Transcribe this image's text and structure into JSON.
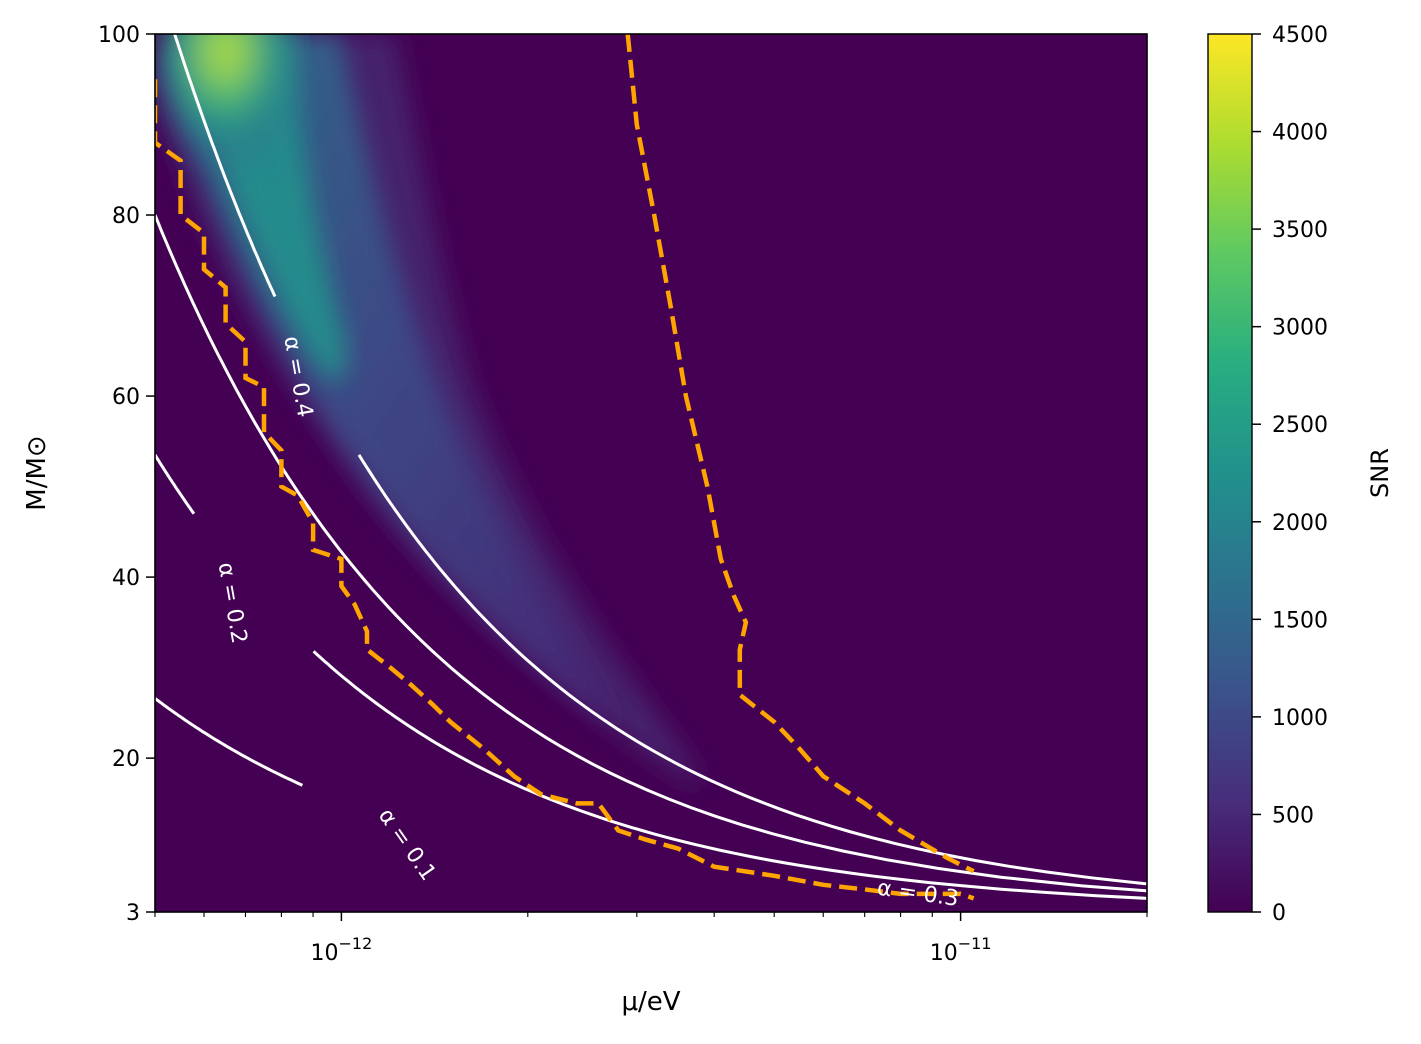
{
  "chart_data": {
    "type": "heatmap",
    "title": "",
    "xlabel": "μ/eV",
    "ylabel": "M/M⊙",
    "xscale": "log",
    "xlim": [
      5e-13,
      2e-11
    ],
    "ylim": [
      3,
      100
    ],
    "xticks": [
      {
        "value": 1e-12,
        "base": "10",
        "exp": "−12"
      },
      {
        "value": 1e-11,
        "base": "10",
        "exp": "−11"
      }
    ],
    "yticks": [
      3,
      20,
      40,
      60,
      80,
      100
    ],
    "colorbar": {
      "label": "SNR",
      "min": 0,
      "max": 4500,
      "ticks": [
        0,
        500,
        1000,
        1500,
        2000,
        2500,
        3000,
        3500,
        4000,
        4500
      ],
      "colormap": "viridis",
      "colors": [
        "#440154",
        "#472d7b",
        "#3b528b",
        "#2c728e",
        "#21918c",
        "#28ae80",
        "#5ec962",
        "#addc30",
        "#fde725"
      ]
    },
    "snr_peak": {
      "mu": 6.5e-13,
      "M": 98,
      "snr": 4500
    },
    "alpha_contours": [
      {
        "label": "α = 0.1",
        "alpha": 0.1
      },
      {
        "label": "α = 0.2",
        "alpha": 0.2
      },
      {
        "label": "α = 0.3",
        "alpha": 0.3
      },
      {
        "label": "α = 0.4",
        "alpha": 0.4
      }
    ],
    "threshold_contours": {
      "color": "#ffa500",
      "style": "dashed",
      "lower": [
        [
          5e-13,
          95
        ],
        [
          5e-13,
          88
        ],
        [
          5.5e-13,
          86
        ],
        [
          5.5e-13,
          80
        ],
        [
          6e-13,
          78
        ],
        [
          6e-13,
          74
        ],
        [
          6.5e-13,
          72
        ],
        [
          6.5e-13,
          68
        ],
        [
          7e-13,
          66
        ],
        [
          7e-13,
          62
        ],
        [
          7.5e-13,
          61
        ],
        [
          7.5e-13,
          56
        ],
        [
          8e-13,
          54
        ],
        [
          8e-13,
          50
        ],
        [
          8.5e-13,
          49
        ],
        [
          9e-13,
          46
        ],
        [
          9e-13,
          43
        ],
        [
          1e-12,
          42
        ],
        [
          1e-12,
          39
        ],
        [
          1.05e-12,
          37
        ],
        [
          1.1e-12,
          34
        ],
        [
          1.1e-12,
          32
        ],
        [
          1.2e-12,
          30
        ],
        [
          1.3e-12,
          28
        ],
        [
          1.4e-12,
          26
        ],
        [
          1.5e-12,
          24
        ],
        [
          1.7e-12,
          21
        ],
        [
          1.9e-12,
          18
        ],
        [
          2.1e-12,
          16
        ],
        [
          2.4e-12,
          15
        ],
        [
          2.6e-12,
          15
        ],
        [
          2.8e-12,
          12
        ],
        [
          3.1e-12,
          11
        ],
        [
          3.5e-12,
          10
        ],
        [
          4e-12,
          8
        ],
        [
          5e-12,
          7
        ],
        [
          6e-12,
          6
        ],
        [
          7e-12,
          5.5
        ],
        [
          8e-12,
          5
        ],
        [
          1e-11,
          5
        ],
        [
          1.05e-11,
          4.5
        ]
      ],
      "upper": [
        [
          2.9e-12,
          100
        ],
        [
          3e-12,
          90
        ],
        [
          3.2e-12,
          80
        ],
        [
          3.4e-12,
          70
        ],
        [
          3.6e-12,
          60
        ],
        [
          3.9e-12,
          50
        ],
        [
          4.1e-12,
          42
        ],
        [
          4.3e-12,
          38
        ],
        [
          4.5e-12,
          35
        ],
        [
          4.4e-12,
          32
        ],
        [
          4.4e-12,
          27
        ],
        [
          5e-12,
          24
        ],
        [
          5.5e-12,
          21
        ],
        [
          6e-12,
          18
        ],
        [
          7e-12,
          15
        ],
        [
          8e-12,
          12
        ],
        [
          9.5e-12,
          9
        ],
        [
          1.05e-11,
          7.5
        ]
      ]
    }
  }
}
